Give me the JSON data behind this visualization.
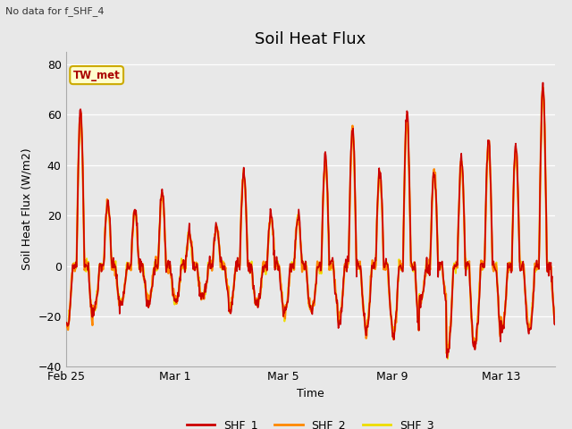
{
  "title": "Soil Heat Flux",
  "top_left_text": "No data for f_SHF_4",
  "ylabel": "Soil Heat Flux (W/m2)",
  "xlabel": "Time",
  "ylim": [
    -40,
    85
  ],
  "yticks": [
    -40,
    -20,
    0,
    20,
    40,
    60,
    80
  ],
  "legend_labels": [
    "SHF_1",
    "SHF_2",
    "SHF_3"
  ],
  "legend_colors": [
    "#cc0000",
    "#ff8800",
    "#eedd00"
  ],
  "annotation_label": "TW_met",
  "annotation_color": "#aa0000",
  "annotation_bg": "#ffffcc",
  "annotation_border": "#ccaa00",
  "bg_color": "#e8e8e8",
  "grid_color": "#ffffff",
  "title_fontsize": 13,
  "axis_fontsize": 9,
  "tick_fontsize": 9,
  "xtick_dates": [
    "Feb 25",
    "Mar 1",
    "Mar 5",
    "Mar 9",
    "Mar 13"
  ],
  "xtick_days_from_start": [
    0,
    4,
    8,
    12,
    16
  ],
  "amplitudes1": [
    62,
    25,
    22,
    30,
    13,
    16,
    38,
    20,
    19,
    43,
    55,
    38,
    61,
    38,
    43,
    50,
    48,
    72
  ],
  "neg_amp1": [
    -25,
    -18,
    -15,
    -14,
    -15,
    -12,
    -18,
    -16,
    -20,
    -18,
    -23,
    -26,
    -28,
    -14,
    -35,
    -32,
    -26,
    -26
  ],
  "n_days": 18,
  "pts_per_day": 48
}
